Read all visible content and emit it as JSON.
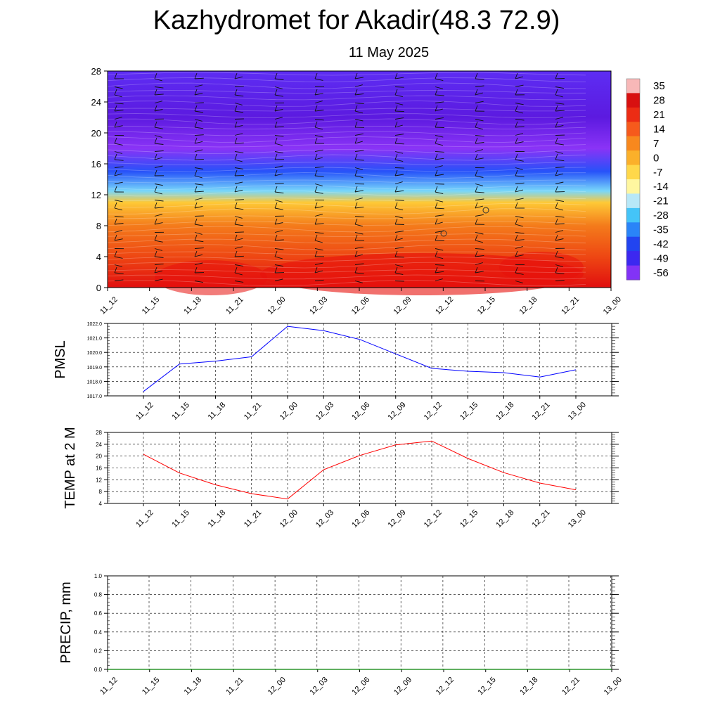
{
  "title": "Kazhydromet for Akadir(48.3 72.9)",
  "subtitle": "11 May 2025",
  "chart_data": [
    {
      "type": "heatmap",
      "description_axes": "time vs level",
      "x_ticks": [
        "11_12",
        "11_15",
        "11_18",
        "11_21",
        "12_00",
        "12_03",
        "12_06",
        "12_09",
        "12_12",
        "12_15",
        "12_18",
        "12_21",
        "13_00"
      ],
      "y_ticks": [
        0,
        4,
        8,
        12,
        16,
        20,
        24,
        28
      ],
      "ylim": [
        0,
        28
      ],
      "colorbar_labels": [
        35,
        28,
        21,
        14,
        7,
        0,
        -7,
        -14,
        -21,
        -28,
        -35,
        -42,
        -49,
        -56
      ],
      "colors": {
        "warm": "#e8100c",
        "mid": "#f6a41c",
        "neutral": "#fffba6",
        "cold": "#1f1ff0",
        "top": "#8a33f6"
      },
      "temperature_by_level": [
        {
          "level": 0,
          "value": 28
        },
        {
          "level": 4,
          "value": 22
        },
        {
          "level": 8,
          "value": 16
        },
        {
          "level": 11,
          "value": 5
        },
        {
          "level": 12.5,
          "value": -18
        },
        {
          "level": 15,
          "value": -36
        },
        {
          "level": 18,
          "value": -56
        },
        {
          "level": 22,
          "value": -60
        },
        {
          "level": 28,
          "value": -52
        }
      ]
    },
    {
      "type": "line",
      "ylabel": "PMSL",
      "x": [
        "11_12",
        "11_15",
        "11_18",
        "11_21",
        "12_00",
        "12_03",
        "12_06",
        "12_09",
        "12_12",
        "12_15",
        "12_18",
        "12_21",
        "13_00"
      ],
      "series": [
        {
          "color": "#0000ff",
          "values": [
            1017.3,
            1019.2,
            1019.4,
            1019.7,
            1021.8,
            1021.5,
            1020.9,
            1019.9,
            1018.9,
            1018.7,
            1018.6,
            1018.3,
            1018.8
          ]
        }
      ],
      "ylim": [
        1017.0,
        1022.0
      ],
      "y_ticks": [
        "1017.0",
        "1018.0",
        "1019.0",
        "1020.0",
        "1021.0",
        "1022.0"
      ],
      "grid": true
    },
    {
      "type": "line",
      "ylabel": "TEMP at 2 M",
      "x": [
        "11_12",
        "11_15",
        "11_18",
        "11_21",
        "12_00",
        "12_03",
        "12_06",
        "12_09",
        "12_12",
        "12_15",
        "12_18",
        "12_21",
        "13_00"
      ],
      "series": [
        {
          "color": "#ff0000",
          "values": [
            20.6,
            14.3,
            10.3,
            7.3,
            5.5,
            15.4,
            20.2,
            23.8,
            25.1,
            19.2,
            14.4,
            10.9,
            8.6
          ]
        }
      ],
      "ylim": [
        4,
        28
      ],
      "y_ticks": [
        "4",
        "8",
        "12",
        "16",
        "20",
        "24",
        "28"
      ],
      "grid": true
    },
    {
      "type": "line",
      "ylabel": "PRECIP, mm",
      "x": [
        "11_12",
        "11_15",
        "11_18",
        "11_21",
        "12_00",
        "12_03",
        "12_06",
        "12_09",
        "12_12",
        "12_15",
        "12_18",
        "12_21",
        "13_00"
      ],
      "series": [
        {
          "color": "#008000",
          "values": [
            0,
            0,
            0,
            0,
            0,
            0,
            0,
            0,
            0,
            0,
            0,
            0,
            0
          ]
        }
      ],
      "ylim": [
        0.0,
        1.0
      ],
      "y_ticks": [
        "0.0",
        "0.2",
        "0.4",
        "0.6",
        "0.8",
        "1.0"
      ],
      "grid": true
    }
  ]
}
